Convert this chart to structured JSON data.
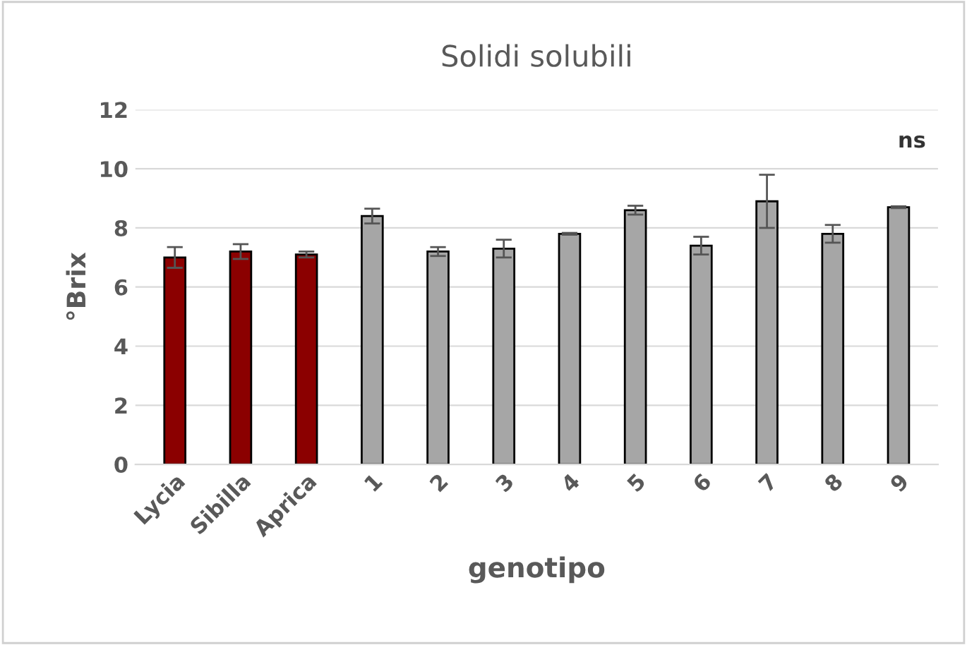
{
  "chart_data": {
    "type": "bar",
    "title": "Solidi solubili",
    "xlabel": "genotipo",
    "ylabel": "°Brix",
    "categories": [
      "Lycia",
      "Sibilla",
      "Aprica",
      "1",
      "2",
      "3",
      "4",
      "5",
      "6",
      "7",
      "8",
      "9"
    ],
    "values": [
      7.0,
      7.2,
      7.1,
      8.4,
      7.2,
      7.3,
      7.8,
      8.6,
      7.4,
      8.9,
      7.8,
      8.7
    ],
    "errors": [
      0.35,
      0.25,
      0.1,
      0.25,
      0.15,
      0.3,
      0.03,
      0.15,
      0.3,
      0.9,
      0.3,
      0.03
    ],
    "colors": [
      "#8b0000",
      "#8b0000",
      "#8b0000",
      "#a6a6a6",
      "#a6a6a6",
      "#a6a6a6",
      "#a6a6a6",
      "#a6a6a6",
      "#a6a6a6",
      "#a6a6a6",
      "#a6a6a6",
      "#a6a6a6"
    ],
    "ylim": [
      0,
      12
    ],
    "yticks": [
      0,
      2,
      4,
      6,
      8,
      10,
      12
    ],
    "grid": "y",
    "annotations": [
      "ns"
    ]
  }
}
